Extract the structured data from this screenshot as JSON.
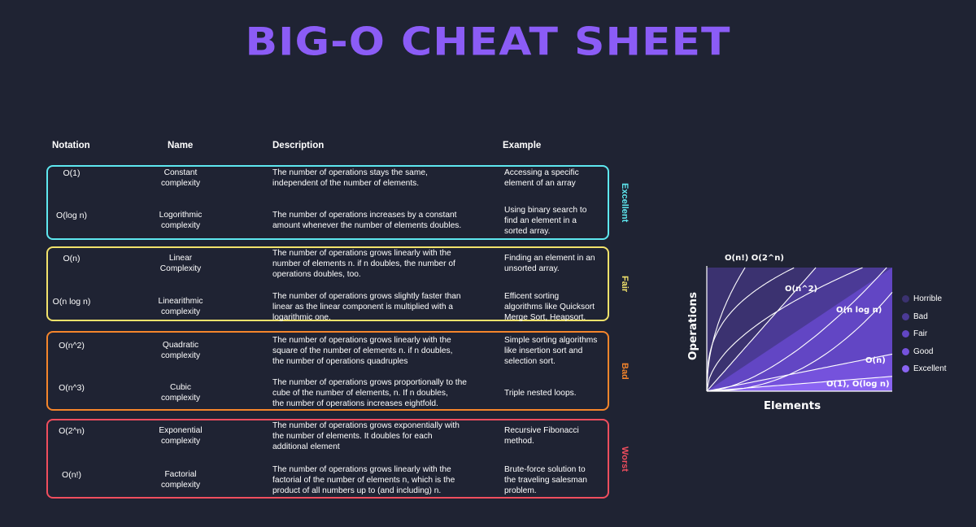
{
  "title": "BIG-O CHEAT SHEET",
  "headers": {
    "notation": "Notation",
    "name": "Name",
    "description": "Description",
    "example": "Example"
  },
  "groups": [
    {
      "label": "Excellent",
      "color": "#5ee8f0"
    },
    {
      "label": "Fair",
      "color": "#f2e26b"
    },
    {
      "label": "Bad",
      "color": "#f5852b"
    },
    {
      "label": "Worst",
      "color": "#f04e5e"
    }
  ],
  "rows": [
    {
      "notation": "O(1)",
      "name": [
        "Constant",
        "complexity"
      ],
      "description": [
        "The number of operations stays the same,",
        "independent of the number of elements."
      ],
      "example": [
        "Accessing a specific",
        "element of an array"
      ]
    },
    {
      "notation": "O(log n)",
      "name": [
        "Logorithmic",
        "complexity"
      ],
      "description": [
        "The number of operations increases by a constant",
        "amount whenever the number of elements doubles."
      ],
      "example": [
        "Using binary search to",
        "find an element in a",
        "sorted array."
      ]
    },
    {
      "notation": "O(n)",
      "name": [
        "Linear",
        "Complexity"
      ],
      "description": [
        "The number of operations grows linearly with the",
        "number of elements n. if n doubles, the number of",
        "operations doubles, too."
      ],
      "example": [
        "Finding an element in an",
        "unsorted array."
      ]
    },
    {
      "notation": "O(n log n)",
      "name": [
        "Linearithmic",
        "complexity"
      ],
      "description": [
        "The number of operations grows slightly faster than",
        "linear as the linear component is multiplied with a",
        "logarithmic one."
      ],
      "example": [
        "Efficent sorting",
        "algorithms like Quicksort",
        "Merge Sort, Heapsort."
      ]
    },
    {
      "notation": "O(n^2)",
      "name": [
        "Quadratic",
        "complexity"
      ],
      "description": [
        "The number of operations grows linearly with the",
        "square of the number of elements n. if n doubles,",
        "the number of operations quadruples"
      ],
      "example": [
        "Simple sorting algorithms",
        "like insertion sort and",
        "selection sort."
      ]
    },
    {
      "notation": "O(n^3)",
      "name": [
        "Cubic",
        "complexity"
      ],
      "description": [
        "The number of operations grows proportionally to the",
        "cube of the number of elements, n. If n doubles,",
        "the number of operations increases eightfold."
      ],
      "example": [
        "Triple nested loops."
      ]
    },
    {
      "notation": "O(2^n)",
      "name": [
        "Exponential",
        "complexity"
      ],
      "description": [
        "The number of operations grows exponentially with",
        "the number of elements. It doubles for each",
        "additional element"
      ],
      "example": [
        "Recursive Fibonacci",
        "method."
      ]
    },
    {
      "notation": "O(n!)",
      "name": [
        "Factorial",
        "complexity"
      ],
      "description": [
        "The number of operations grows linearly with the",
        "factorial of the number of elements n, which is the",
        "product of all numbers up to (and including) n."
      ],
      "example": [
        "Brute-force solution to",
        "the traveling salesman",
        "problem."
      ]
    }
  ],
  "chart": {
    "xlabel": "Elements",
    "ylabel": "Operations",
    "curve_labels": {
      "top": "O(n!) O(2^n)",
      "quadratic": "O(n^2)",
      "nlogn": "O(n log n)",
      "linear": "O(n)",
      "const": "O(1), O(log n)"
    },
    "region_colors": {
      "horrible": "#3b3270",
      "bad": "#4b3a96",
      "fair": "#6246c4",
      "good": "#7552dc",
      "excellent": "#8a64f2"
    },
    "legend": [
      {
        "label": "Horrible",
        "color": "#3b3270"
      },
      {
        "label": "Bad",
        "color": "#4b3a96"
      },
      {
        "label": "Fair",
        "color": "#6246c4"
      },
      {
        "label": "Good",
        "color": "#7552dc"
      },
      {
        "label": "Excellent",
        "color": "#8a64f2"
      }
    ]
  }
}
